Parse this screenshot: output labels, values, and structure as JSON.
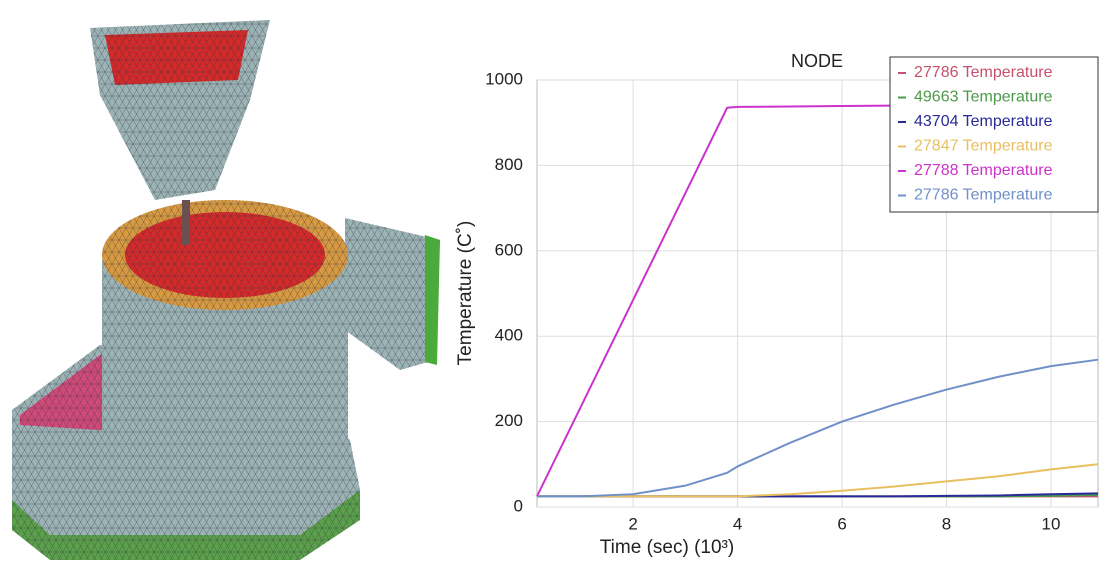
{
  "chart_data": {
    "type": "line",
    "title": "NODE",
    "x_label": "Time (sec) (10³)",
    "y_label": "Temperature (C˚)",
    "x": [
      0.16,
      1,
      2,
      3,
      3.8,
      4,
      5,
      6,
      7,
      8,
      9,
      10,
      10.9
    ],
    "series": [
      {
        "name": "27786 Temperature",
        "color": "#c8506e",
        "values": [
          25,
          25,
          25,
          25,
          25,
          25,
          25,
          25,
          25,
          25,
          25,
          25,
          25
        ]
      },
      {
        "name": "49663 Temperature",
        "color": "#4a9a4a",
        "values": [
          25,
          25,
          25,
          25,
          25,
          25,
          25,
          25,
          25,
          25,
          25,
          26,
          28
        ]
      },
      {
        "name": "43704 Temperature",
        "color": "#2a2a9a",
        "values": [
          25,
          25,
          25,
          25,
          25,
          25,
          25,
          25,
          25,
          26,
          27,
          30,
          32
        ]
      },
      {
        "name": "27847 Temperature",
        "color": "#e8c060",
        "values": [
          25,
          25,
          25,
          25,
          25,
          25,
          30,
          38,
          48,
          60,
          72,
          88,
          100
        ]
      },
      {
        "name": "27788 Temperature",
        "color": "#cc33cc",
        "values": [
          25,
          235,
          485,
          735,
          935,
          937,
          938,
          939,
          940,
          940,
          940,
          940,
          940
        ]
      },
      {
        "name": "27786 Temperature",
        "color": "#7090c8",
        "values": [
          25,
          25,
          30,
          50,
          80,
          95,
          150,
          200,
          240,
          275,
          305,
          330,
          345
        ]
      }
    ],
    "xlim": [
      0.16,
      10.9
    ],
    "xticks": [
      2,
      4,
      6,
      8,
      10
    ],
    "ylim": [
      0,
      1000
    ],
    "yticks": [
      0,
      200,
      400,
      600,
      800,
      1000
    ],
    "grid": true,
    "legend": "upper right"
  }
}
